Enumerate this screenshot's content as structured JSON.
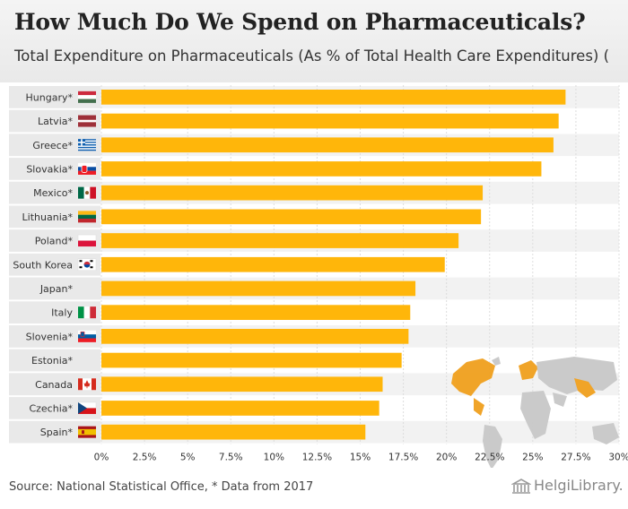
{
  "header": {
    "title": "How Much Do We Spend on Pharmaceuticals?",
    "subtitle": "Total Expenditure on Pharmaceuticals (As % of Total Health Care Expenditures) ("
  },
  "footer": {
    "source": "Source: National Statistical Office, * Data from 2017",
    "brand": "HelgiLibrary."
  },
  "colors": {
    "bar": "#ffb60a",
    "row_band": "#f2f2f2",
    "label_band": "#e9e9e9",
    "grid": "#dddddd",
    "map_land": "#c8c8c8",
    "map_highlight": "#f0a01e"
  },
  "chart_data": {
    "type": "bar",
    "orientation": "horizontal",
    "categories": [
      "Hungary*",
      "Latvia*",
      "Greece*",
      "Slovakia*",
      "Mexico*",
      "Lithuania*",
      "Poland*",
      "South Korea",
      "Japan*",
      "Italy",
      "Slovenia*",
      "Estonia*",
      "Canada",
      "Czechia*",
      "Spain*"
    ],
    "values": [
      26.9,
      26.5,
      26.2,
      25.5,
      22.1,
      22.0,
      20.7,
      19.9,
      18.2,
      17.9,
      17.8,
      17.4,
      16.3,
      16.1,
      15.3
    ],
    "flags": [
      "hungary-flag-icon",
      "latvia-flag-icon",
      "greece-flag-icon",
      "slovakia-flag-icon",
      "mexico-flag-icon",
      "lithuania-flag-icon",
      "poland-flag-icon",
      "south-korea-flag-icon",
      "",
      "italy-flag-icon",
      "slovenia-flag-icon",
      "",
      "canada-flag-icon",
      "czechia-flag-icon",
      "spain-flag-icon"
    ],
    "xticks": [
      "0%",
      "2.5%",
      "5%",
      "7.5%",
      "10%",
      "12.5%",
      "15%",
      "17.5%",
      "20%",
      "22.5%",
      "25%",
      "27.5%",
      "30%"
    ],
    "xlim": [
      0,
      30
    ],
    "grid": true,
    "inset": "world-map"
  }
}
